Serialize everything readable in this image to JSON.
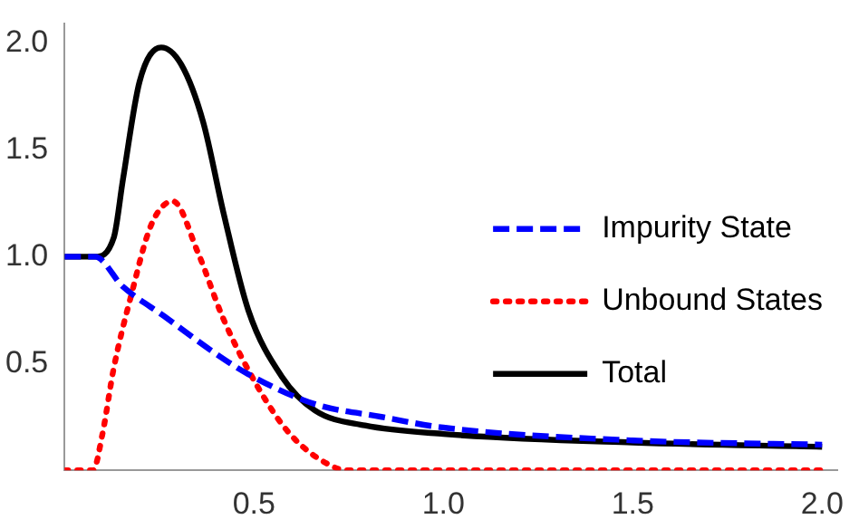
{
  "chart_data": {
    "type": "line",
    "xlim": [
      0,
      2.04
    ],
    "ylim": [
      0,
      2.09
    ],
    "xticks": [
      {
        "value": 0.5,
        "label": "0.5"
      },
      {
        "value": 1,
        "label": "1.0"
      },
      {
        "value": 1.5,
        "label": "1.5"
      },
      {
        "value": 2,
        "label": "2.0"
      }
    ],
    "yticks": [
      {
        "value": 0.5,
        "label": "0.5"
      },
      {
        "value": 1,
        "label": "1.0"
      },
      {
        "value": 1.5,
        "label": "1.5"
      },
      {
        "value": 2,
        "label": "2.0"
      }
    ],
    "grid": false,
    "legend": "right",
    "marker": "none",
    "series": [
      {
        "name": "Impurity State",
        "color": "#0000ff",
        "line_style": "dashed",
        "x": [
          0,
          0.08,
          0.154,
          0.264,
          0.396,
          0.485,
          0.661,
          0.837,
          1.0,
          1.5,
          2.0
        ],
        "values": [
          1.0,
          1.0,
          0.86,
          0.72,
          0.55,
          0.45,
          0.31,
          0.25,
          0.2,
          0.14,
          0.12
        ]
      },
      {
        "name": "Unbound States",
        "color": "#ff0000",
        "line_style": "dotted",
        "x": [
          0,
          0.075,
          0.1,
          0.13,
          0.176,
          0.229,
          0.286,
          0.352,
          0.419,
          0.507,
          0.595,
          0.705,
          0.75,
          1.0,
          1.5,
          2.0
        ],
        "values": [
          0,
          0,
          0.17,
          0.48,
          0.82,
          1.15,
          1.26,
          1.02,
          0.71,
          0.4,
          0.17,
          0.02,
          0,
          0,
          0,
          0
        ]
      },
      {
        "name": "Total",
        "color": "#000000",
        "line_style": "solid",
        "x": [
          0,
          0.08,
          0.13,
          0.154,
          0.198,
          0.255,
          0.308,
          0.366,
          0.419,
          0.485,
          0.573,
          0.661,
          0.793,
          1.0,
          1.5,
          2.0
        ],
        "values": [
          1.0,
          1.0,
          1.09,
          1.36,
          1.82,
          1.98,
          1.9,
          1.63,
          1.21,
          0.75,
          0.44,
          0.28,
          0.21,
          0.17,
          0.13,
          0.11
        ]
      }
    ]
  }
}
